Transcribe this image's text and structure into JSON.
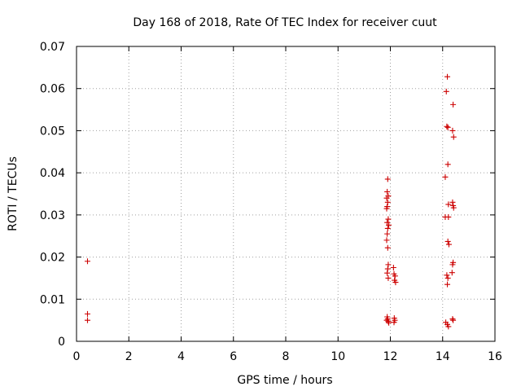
{
  "colors": {
    "series": "#cc0000",
    "axis": "#000000",
    "grid": "#a0a0a0"
  },
  "chart_data": {
    "type": "scatter",
    "title": "Day 168 of 2018, Rate Of TEC Index for receiver cuut",
    "xlabel": "GPS time / hours",
    "ylabel": "ROTI / TECUs",
    "xlim": [
      0,
      16
    ],
    "ylim": [
      0,
      0.07
    ],
    "xticks": [
      0,
      2,
      4,
      6,
      8,
      10,
      12,
      14,
      16
    ],
    "xtick_labels": [
      "0",
      "2",
      "4",
      "6",
      "8",
      "10",
      "12",
      "14",
      "16"
    ],
    "yticks": [
      0,
      0.01,
      0.02,
      0.03,
      0.04,
      0.05,
      0.06,
      0.07
    ],
    "ytick_labels": [
      "0",
      "0.01",
      "0.02",
      "0.03",
      "0.04",
      "0.05",
      "0.06",
      "0.07"
    ],
    "grid": true,
    "marker": "+",
    "series": [
      {
        "name": "ROTI",
        "points": [
          [
            0.42,
            0.019
          ],
          [
            0.42,
            0.0065
          ],
          [
            0.42,
            0.005
          ],
          [
            11.9,
            0.0385
          ],
          [
            11.88,
            0.0355
          ],
          [
            11.92,
            0.0345
          ],
          [
            11.86,
            0.034
          ],
          [
            11.9,
            0.033
          ],
          [
            11.88,
            0.032
          ],
          [
            11.86,
            0.0315
          ],
          [
            11.92,
            0.029
          ],
          [
            11.88,
            0.0282
          ],
          [
            11.94,
            0.0276
          ],
          [
            11.9,
            0.0268
          ],
          [
            11.88,
            0.0255
          ],
          [
            11.86,
            0.024
          ],
          [
            11.9,
            0.0222
          ],
          [
            11.92,
            0.0182
          ],
          [
            11.9,
            0.0172
          ],
          [
            11.88,
            0.0162
          ],
          [
            11.92,
            0.015
          ],
          [
            11.88,
            0.0058
          ],
          [
            11.9,
            0.0053
          ],
          [
            11.86,
            0.005
          ],
          [
            11.92,
            0.0047
          ],
          [
            11.94,
            0.0044
          ],
          [
            12.12,
            0.0175
          ],
          [
            12.14,
            0.016
          ],
          [
            12.18,
            0.0155
          ],
          [
            12.16,
            0.0145
          ],
          [
            12.2,
            0.014
          ],
          [
            12.15,
            0.0055
          ],
          [
            12.17,
            0.005
          ],
          [
            12.14,
            0.0045
          ],
          [
            14.18,
            0.0628
          ],
          [
            14.14,
            0.0593
          ],
          [
            14.4,
            0.0562
          ],
          [
            14.16,
            0.051
          ],
          [
            14.2,
            0.0508
          ],
          [
            14.38,
            0.05
          ],
          [
            14.42,
            0.0485
          ],
          [
            14.2,
            0.042
          ],
          [
            14.1,
            0.039
          ],
          [
            14.22,
            0.0325
          ],
          [
            14.38,
            0.033
          ],
          [
            14.4,
            0.0322
          ],
          [
            14.42,
            0.0317
          ],
          [
            14.1,
            0.0295
          ],
          [
            14.22,
            0.0295
          ],
          [
            14.2,
            0.0237
          ],
          [
            14.24,
            0.023
          ],
          [
            14.4,
            0.0187
          ],
          [
            14.38,
            0.0182
          ],
          [
            14.36,
            0.0163
          ],
          [
            14.16,
            0.0157
          ],
          [
            14.2,
            0.015
          ],
          [
            14.18,
            0.0135
          ],
          [
            14.12,
            0.0045
          ],
          [
            14.18,
            0.004
          ],
          [
            14.22,
            0.0035
          ],
          [
            14.38,
            0.0053
          ],
          [
            14.4,
            0.005
          ]
        ]
      }
    ]
  }
}
